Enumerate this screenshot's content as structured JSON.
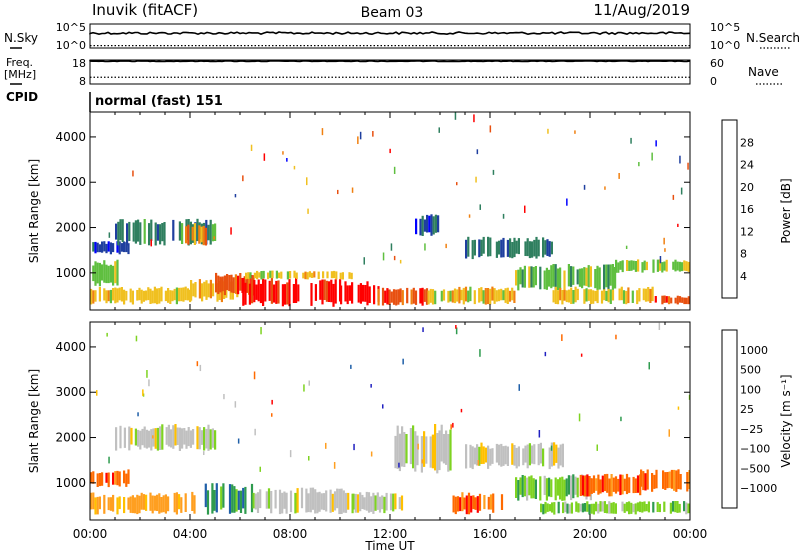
{
  "header": {
    "station": "Inuvik (fitACF)",
    "beam": "Beam 03",
    "date": "11/Aug/2019"
  },
  "left_labels": {
    "nsky": "N.Sky",
    "freq": "Freq.",
    "mhz": "[MHz]",
    "cpid": "CPID"
  },
  "right_labels": {
    "nsearch": "N.Search",
    "nave": "Nave"
  },
  "cpid_text": "normal (fast) 151",
  "colors": {
    "power": [
      "#0000ff",
      "#1f3f9f",
      "#2f7f5f",
      "#5fbf3f",
      "#f0c020",
      "#f08010",
      "#e85010",
      "#ff0000"
    ],
    "velocity": [
      "#ff0000",
      "#ff6a00",
      "#ff9f20",
      "#ffc000",
      "#c0c0c0",
      "#7ed321",
      "#2e9b4e",
      "#1f5fa8",
      "#2020c0"
    ]
  },
  "chart_data": [
    {
      "type": "line",
      "name": "status-nsky-nsearch",
      "left_axis": {
        "label": "N.Sky",
        "ticks": [
          "10^5",
          "10^0"
        ]
      },
      "right_axis": {
        "label": "N.Search",
        "ticks": [
          "10^5",
          "10^0"
        ]
      },
      "nsky_level": 0.62,
      "nsearch_level": 0.1
    },
    {
      "type": "line",
      "name": "status-freq-nave",
      "left_axis": {
        "label": "Freq. [MHz]",
        "ticks": [
          "18",
          "8"
        ]
      },
      "right_axis": {
        "label": "Nave",
        "ticks": [
          "60",
          "0"
        ]
      },
      "freq_level": 0.95,
      "nave_level": 0.28
    },
    {
      "type": "heatmap",
      "name": "power-panel",
      "ylabel": "Slant Range [km]",
      "yticks": [
        1000,
        2000,
        3000,
        4000
      ],
      "ylim": [
        180,
        4550
      ],
      "x_range_hours": [
        0,
        24
      ],
      "colorbar": {
        "label": "Power [dB]",
        "ticks": [
          "28",
          "24",
          "20",
          "16",
          "12",
          "8",
          "4"
        ]
      },
      "regions": [
        {
          "t0": 0.0,
          "t1": 1.2,
          "r0": 700,
          "r1": 1300,
          "level": 3
        },
        {
          "t0": 0.0,
          "t1": 1.5,
          "r0": 1400,
          "r1": 1700,
          "level": 1
        },
        {
          "t0": 0.0,
          "t1": 4.0,
          "r0": 300,
          "r1": 700,
          "level": 4
        },
        {
          "t0": 1.0,
          "t1": 5.0,
          "r0": 1600,
          "r1": 2200,
          "level": 2
        },
        {
          "t0": 3.8,
          "t1": 4.6,
          "r0": 1600,
          "r1": 2100,
          "level": 5
        },
        {
          "t0": 4.0,
          "t1": 6.0,
          "r0": 350,
          "r1": 900,
          "level": 4
        },
        {
          "t0": 5.0,
          "t1": 6.5,
          "r0": 500,
          "r1": 1000,
          "level": 6
        },
        {
          "t0": 6.0,
          "t1": 10.0,
          "r0": 250,
          "r1": 900,
          "level": 7
        },
        {
          "t0": 6.2,
          "t1": 10.5,
          "r0": 850,
          "r1": 1050,
          "level": 4
        },
        {
          "t0": 10.0,
          "t1": 11.5,
          "r0": 250,
          "r1": 850,
          "level": 7
        },
        {
          "t0": 11.5,
          "t1": 13.5,
          "r0": 250,
          "r1": 700,
          "level": 6
        },
        {
          "t0": 13.0,
          "t1": 14.0,
          "r0": 1800,
          "r1": 2300,
          "level": 1
        },
        {
          "t0": 13.5,
          "t1": 17.0,
          "r0": 300,
          "r1": 700,
          "level": 4
        },
        {
          "t0": 15.0,
          "t1": 18.5,
          "r0": 1300,
          "r1": 1800,
          "level": 2
        },
        {
          "t0": 17.0,
          "t1": 21.0,
          "r0": 600,
          "r1": 1200,
          "level": 3
        },
        {
          "t0": 18.5,
          "t1": 22.5,
          "r0": 300,
          "r1": 700,
          "level": 4
        },
        {
          "t0": 21.0,
          "t1": 24.0,
          "r0": 1000,
          "r1": 1300,
          "level": 3
        },
        {
          "t0": 22.5,
          "t1": 24.0,
          "r0": 300,
          "r1": 500,
          "level": 6
        }
      ]
    },
    {
      "type": "heatmap",
      "name": "velocity-panel",
      "ylabel": "Slant Range [km]",
      "yticks": [
        1000,
        2000,
        3000,
        4000
      ],
      "ylim": [
        180,
        4550
      ],
      "x_range_hours": [
        0,
        24
      ],
      "xticks": [
        "00:00",
        "04:00",
        "08:00",
        "12:00",
        "16:00",
        "20:00",
        "00:00"
      ],
      "xlabel": "Time UT",
      "colorbar": {
        "label": "Velocity [m s⁻¹]",
        "ticks": [
          "1000",
          "500",
          "100",
          "25",
          "−25",
          "−100",
          "−500",
          "−1000"
        ]
      },
      "regions": [
        {
          "t0": 0.0,
          "t1": 1.5,
          "r0": 900,
          "r1": 1300,
          "level": 1
        },
        {
          "t0": 0.0,
          "t1": 4.2,
          "r0": 300,
          "r1": 800,
          "level": 2
        },
        {
          "t0": 1.0,
          "t1": 5.0,
          "r0": 1700,
          "r1": 2300,
          "level": 4
        },
        {
          "t0": 4.5,
          "t1": 6.5,
          "r0": 300,
          "r1": 1000,
          "level": 6
        },
        {
          "t0": 6.5,
          "t1": 10.5,
          "r0": 300,
          "r1": 900,
          "level": 4
        },
        {
          "t0": 10.5,
          "t1": 12.5,
          "r0": 300,
          "r1": 800,
          "level": 4
        },
        {
          "t0": 12.0,
          "t1": 14.5,
          "r0": 1200,
          "r1": 2300,
          "level": 4
        },
        {
          "t0": 14.5,
          "t1": 16.5,
          "r0": 300,
          "r1": 800,
          "level": 1
        },
        {
          "t0": 15.0,
          "t1": 19.0,
          "r0": 1300,
          "r1": 1900,
          "level": 4
        },
        {
          "t0": 17.0,
          "t1": 20.0,
          "r0": 600,
          "r1": 1200,
          "level": 5
        },
        {
          "t0": 19.5,
          "t1": 22.0,
          "r0": 700,
          "r1": 1200,
          "level": 1
        },
        {
          "t0": 18.0,
          "t1": 24.0,
          "r0": 300,
          "r1": 600,
          "level": 5
        },
        {
          "t0": 22.0,
          "t1": 24.0,
          "r0": 800,
          "r1": 1300,
          "level": 1
        }
      ]
    }
  ]
}
